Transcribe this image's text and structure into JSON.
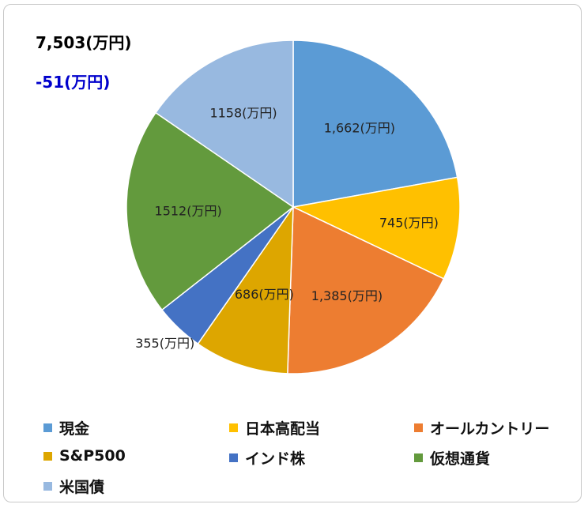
{
  "header": {
    "total": "7,503(万円)",
    "change": "-51(万円)"
  },
  "chart_data": {
    "type": "pie",
    "unit_suffix": "(万円)",
    "slices": [
      {
        "name": "現金",
        "value": 1662,
        "label": "1,662(万円)",
        "color": "#5b9bd5"
      },
      {
        "name": "日本高配当",
        "value": 745,
        "label": "745(万円)",
        "color": "#ffc000"
      },
      {
        "name": "オールカントリー",
        "value": 1385,
        "label": "1,385(万円)",
        "color": "#ed7d31"
      },
      {
        "name": "S&P500",
        "value": 686,
        "label": "686(万円)",
        "color": "#dda600"
      },
      {
        "name": "インド株",
        "value": 355,
        "label": "355(万円)",
        "color": "#4472c4"
      },
      {
        "name": "仮想通貨",
        "value": 1512,
        "label": "1512(万円)",
        "color": "#639a3d"
      },
      {
        "name": "米国債",
        "value": 1158,
        "label": "1158(万円)",
        "color": "#98b9e0"
      }
    ],
    "legend_position": "bottom"
  }
}
